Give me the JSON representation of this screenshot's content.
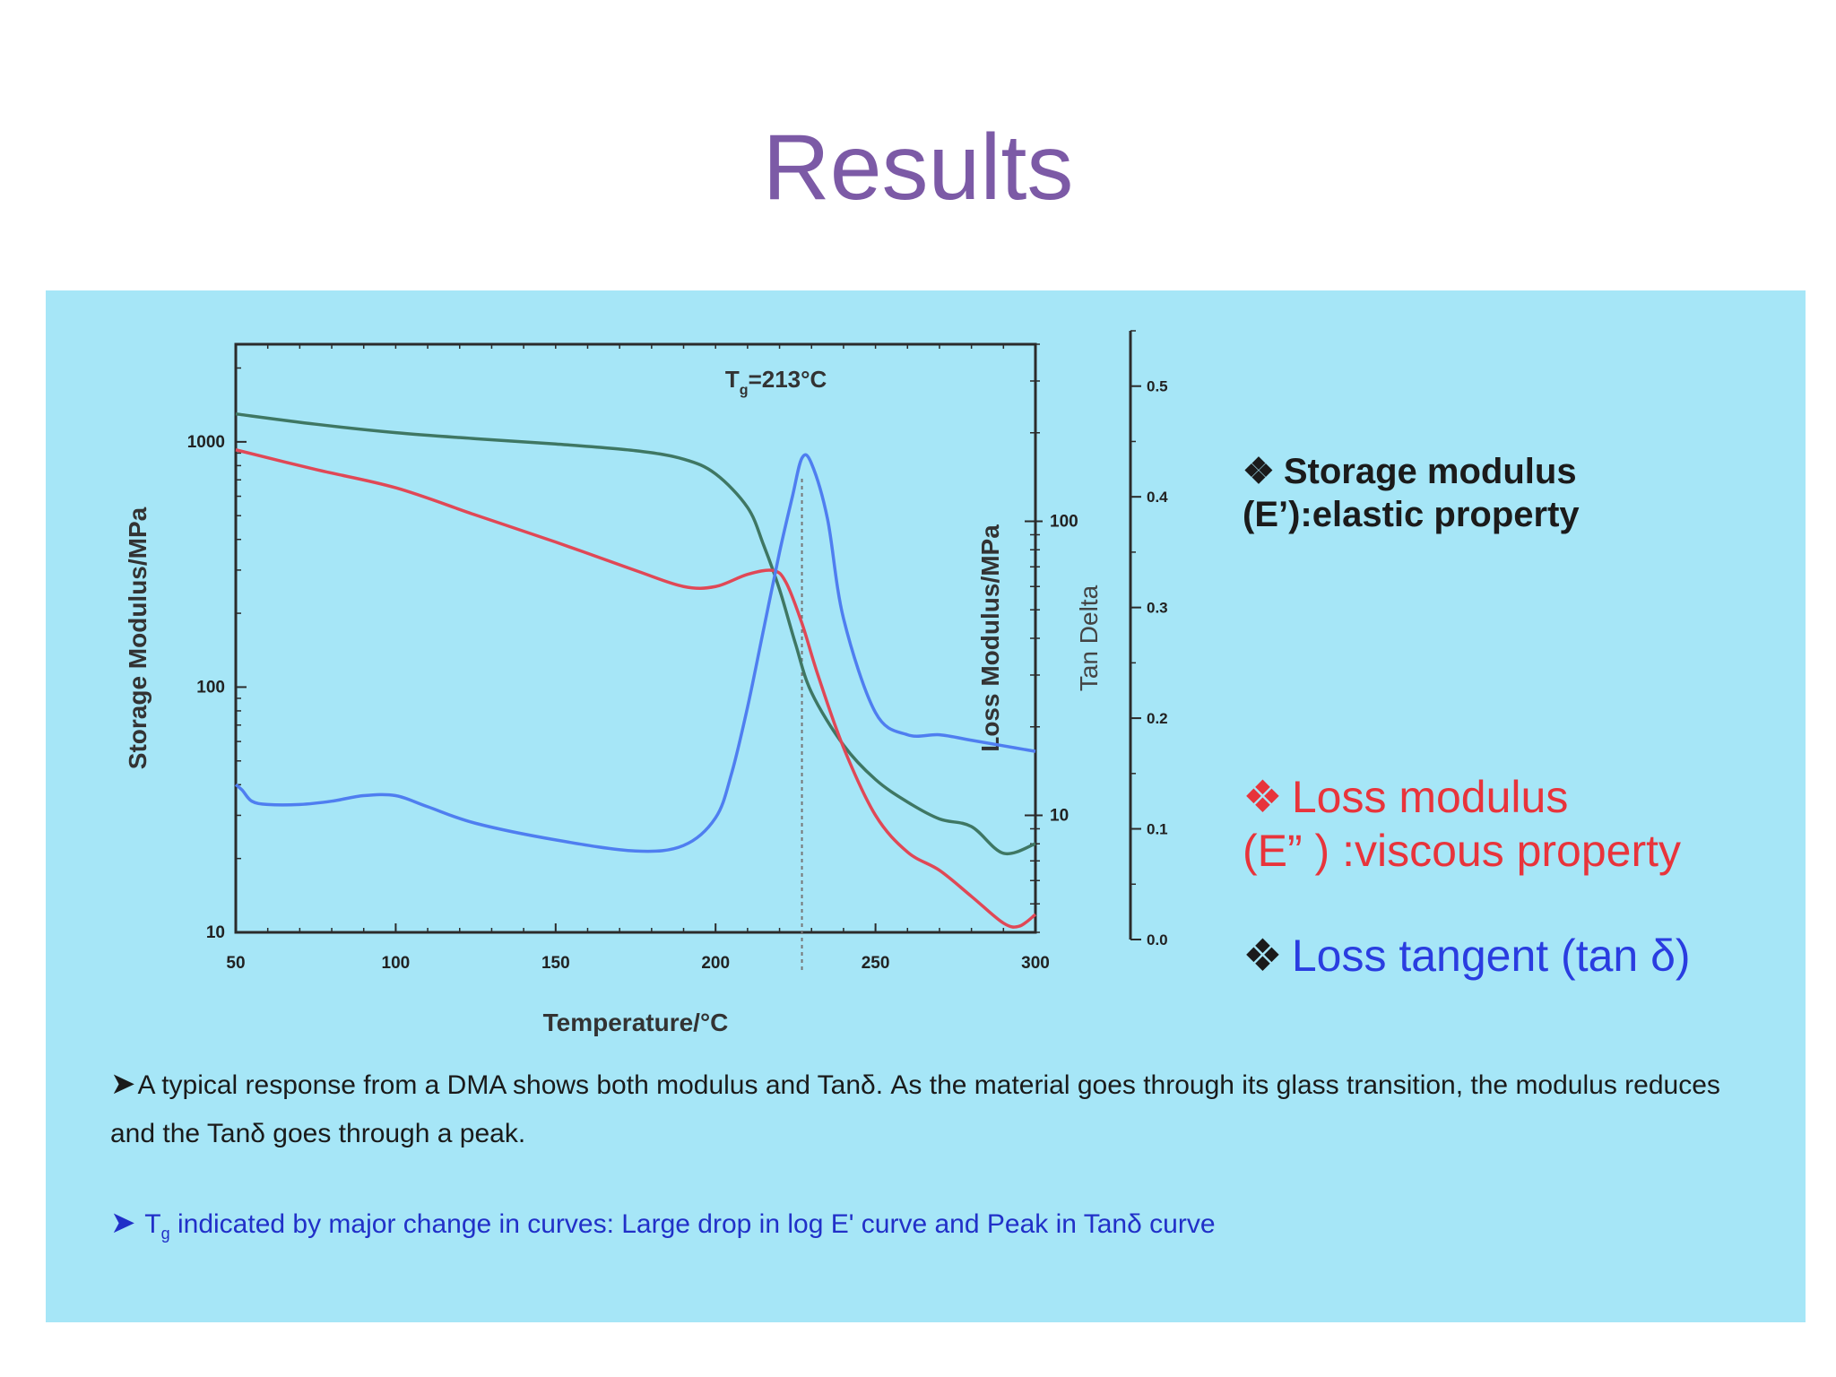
{
  "slide": {
    "title": "Results"
  },
  "legend": {
    "storage": {
      "marker": "❖",
      "line1": "Storage modulus",
      "line2": "(E’):elastic property",
      "color": "#1b1b1b"
    },
    "loss": {
      "marker": "❖",
      "line1": "Loss modulus",
      "line2": "(E”  ) :viscous property",
      "color": "#e8343b"
    },
    "tan": {
      "marker": "❖",
      "line1": "Loss tangent (tan δ)",
      "color": "#2a3de0"
    }
  },
  "text": {
    "para1": "A typical response from a DMA shows both modulus and Tanδ. As the material goes through its glass transition, the modulus reduces and the Tanδ goes through a peak.",
    "para2_prefix": "T",
    "para2_sub": "g",
    "para2_rest": " indicated by major change in curves: Large drop in log E' curve and Peak in Tanδ  curve"
  },
  "chart_data": {
    "type": "line",
    "xlabel": "Temperature/°C",
    "ylabel_left": "Storage Modulus/MPa",
    "ylabel_right_1": "Loss Modulus/MPa",
    "ylabel_right_2": "Tan Delta",
    "annotation": {
      "text_main": "T",
      "text_sub": "g",
      "text_rest": "=213°C",
      "x": 227
    },
    "xlim": [
      50,
      300
    ],
    "x_ticks": [
      50,
      100,
      150,
      200,
      250,
      300
    ],
    "y_left": {
      "scale": "log",
      "lim": [
        10,
        2500
      ],
      "ticks": [
        10,
        100,
        1000
      ],
      "tick_labels": [
        "10",
        "100",
        "1000"
      ]
    },
    "y_right_loss": {
      "scale": "log",
      "lim": [
        4,
        400
      ],
      "ticks": [
        10,
        100
      ],
      "tick_labels": [
        "10",
        "100"
      ]
    },
    "y_right_tan": {
      "scale": "linear",
      "lim": [
        0.0,
        0.55
      ],
      "ticks": [
        0.0,
        0.1,
        0.2,
        0.3,
        0.4,
        0.5
      ],
      "tick_labels": [
        "0.0",
        "0.1",
        "0.2",
        "0.3",
        "0.4",
        "0.5"
      ]
    },
    "grid": false,
    "series": [
      {
        "name": "Storage modulus",
        "axis": "left",
        "color": "#3f7763",
        "x": [
          50,
          75,
          100,
          125,
          150,
          175,
          190,
          200,
          210,
          215,
          220,
          225,
          230,
          240,
          250,
          260,
          270,
          280,
          290,
          300
        ],
        "y": [
          1300,
          1180,
          1090,
          1030,
          980,
          920,
          850,
          740,
          540,
          380,
          250,
          150,
          95,
          58,
          42,
          34,
          29,
          27,
          21,
          23
        ]
      },
      {
        "name": "Loss modulus",
        "axis": "right_loss",
        "color": "#e04856",
        "x": [
          50,
          75,
          100,
          125,
          150,
          175,
          190,
          200,
          210,
          218,
          222,
          227,
          232,
          240,
          250,
          260,
          270,
          280,
          290,
          295,
          300
        ],
        "y": [
          175,
          150,
          130,
          105,
          85,
          68,
          60,
          60,
          66,
          68,
          62,
          45,
          30,
          17,
          10,
          7.5,
          6.5,
          5.3,
          4.3,
          4.2,
          4.6
        ]
      },
      {
        "name": "Loss tangent",
        "axis": "right_tan",
        "color": "#4f7ef0",
        "x": [
          50,
          52,
          55,
          60,
          70,
          80,
          90,
          100,
          110,
          125,
          150,
          175,
          190,
          200,
          205,
          210,
          215,
          220,
          224,
          227,
          230,
          235,
          240,
          250,
          260,
          270,
          280,
          290,
          300
        ],
        "y": [
          0.14,
          0.135,
          0.125,
          0.122,
          0.122,
          0.125,
          0.13,
          0.13,
          0.12,
          0.105,
          0.09,
          0.08,
          0.085,
          0.11,
          0.15,
          0.21,
          0.28,
          0.35,
          0.4,
          0.435,
          0.43,
          0.38,
          0.29,
          0.205,
          0.185,
          0.185,
          0.18,
          0.175,
          0.17
        ]
      }
    ]
  }
}
